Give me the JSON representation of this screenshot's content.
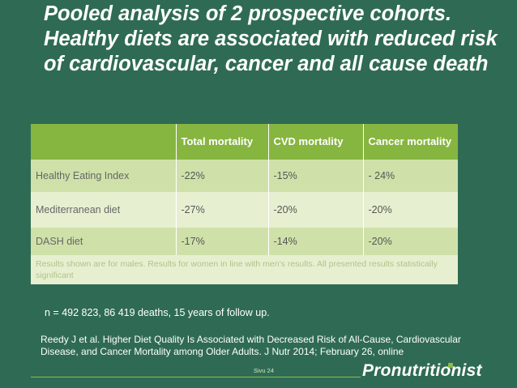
{
  "title": "Pooled analysis of 2 prospective cohorts. Healthy diets are associated with reduced risk of cardiovascular, cancer and all cause death",
  "table": {
    "headers": [
      "",
      "Total mortality",
      "CVD mortality",
      "Cancer mortality"
    ],
    "rows": [
      [
        "Healthy Eating Index",
        "-22%",
        "-15%",
        "- 24%"
      ],
      [
        "Mediterranean diet",
        "-27%",
        "-20%",
        "-20%"
      ],
      [
        "DASH diet",
        "-17%",
        "-14%",
        "-20%"
      ]
    ],
    "note": "Results shown are for males. Results for women in line with men’s results. All presented results statistically significant"
  },
  "followup": "n = 492 823, 86 419 deaths, 15 years of follow up.",
  "reference": "Reedy J et al. Higher Diet Quality Is Associated with Decreased Risk of All-Cause, Cardiovascular Disease, and Cancer Mortality among Older Adults. J Nutr 2014; February 26, online",
  "footer": {
    "page_label": "Sivu 24",
    "brand": "Pronutritionist"
  },
  "colors": {
    "background": "#2f6b54",
    "header_fill": "#86b540",
    "row_dark": "#cfe1a9",
    "row_light": "#e6f0d0"
  }
}
